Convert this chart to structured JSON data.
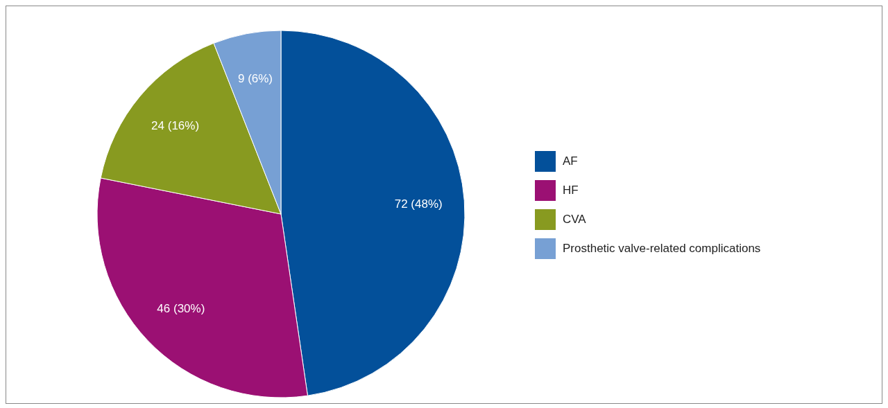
{
  "chart_data": {
    "type": "pie",
    "categories": [
      "AF",
      "HF",
      "CVA",
      "Prosthetic valve-related complications"
    ],
    "values": [
      72,
      46,
      24,
      9
    ],
    "colors": [
      "#03509a",
      "#9b1073",
      "#889a20",
      "#77a0d4"
    ],
    "value_labels": [
      "72 (48%)",
      "46 (30%)",
      "24 (16%)",
      "9 (6%)"
    ],
    "legend": "right"
  }
}
